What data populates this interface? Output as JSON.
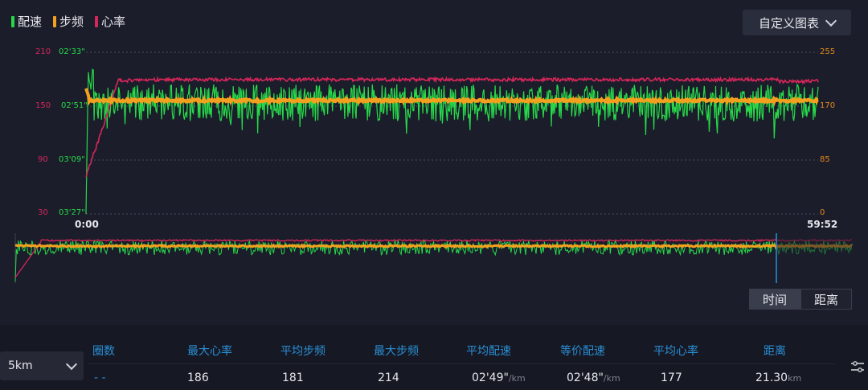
{
  "legend": [
    {
      "label": "配速",
      "color": "#27d94a"
    },
    {
      "label": "步频",
      "color": "#f3a01f"
    },
    {
      "label": "心率",
      "color": "#d7265a"
    }
  ],
  "custom_chart_button": "自定义图表",
  "axes": {
    "heart_rate_ticks": [
      "210",
      "150",
      "90",
      "30"
    ],
    "pace_ticks": [
      "02'33\"",
      "02'51\"",
      "03'09\"",
      "03'27\""
    ],
    "cadence_ticks": [
      "255",
      "170",
      "85",
      "0"
    ],
    "time_start": "0:00",
    "time_end": "59:52"
  },
  "toggle": {
    "time": "时间",
    "distance": "距离",
    "selected": "时间"
  },
  "filter": {
    "value": "5km"
  },
  "table": {
    "headers": [
      "圈数",
      "最大心率",
      "平均步频",
      "最大步频",
      "平均配速",
      "等价配速",
      "平均心率",
      "距离"
    ],
    "row": {
      "laps": "- -",
      "max_hr": "186",
      "avg_cadence": "181",
      "max_cadence": "214",
      "avg_pace": "02'49\"",
      "avg_pace_unit": "/km",
      "equiv_pace": "02'48\"",
      "equiv_pace_unit": "/km",
      "avg_hr": "177",
      "distance": "21.30",
      "distance_unit": "km"
    }
  },
  "chart_data": {
    "type": "line",
    "x_range": [
      "0:00",
      "59:52"
    ],
    "axes": {
      "left_heart_rate": [
        30,
        210
      ],
      "left_pace": [
        "03'27\"",
        "02'33\""
      ],
      "right_cadence": [
        0,
        255
      ]
    },
    "series": [
      {
        "name": "配速",
        "color": "#27d94a",
        "approx_level": "02'48\"",
        "description": "noisy fluctuating between ~02'41\" and ~03'00\""
      },
      {
        "name": "步频",
        "color": "#f3a01f",
        "approx_value": 181
      },
      {
        "name": "心率",
        "color": "#d7265a",
        "approx_value": 177,
        "start_value": 60
      }
    ],
    "grid": true
  }
}
